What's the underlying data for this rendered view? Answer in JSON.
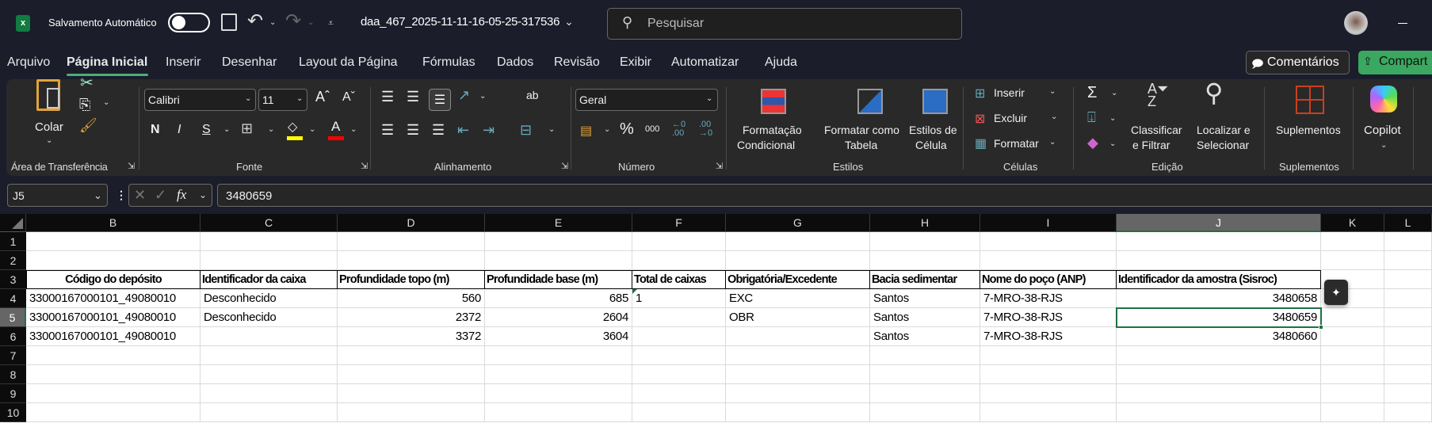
{
  "titlebar": {
    "autosave_label": "Salvamento Automático",
    "filename": "daa_467_2025-11-11-16-05-25-317536",
    "search_placeholder": "Pesquisar",
    "autosave_on": false
  },
  "tabs": [
    {
      "label": "Arquivo"
    },
    {
      "label": "Página Inicial",
      "active": true
    },
    {
      "label": "Inserir"
    },
    {
      "label": "Desenhar"
    },
    {
      "label": "Layout da Página"
    },
    {
      "label": "Fórmulas"
    },
    {
      "label": "Dados"
    },
    {
      "label": "Revisão"
    },
    {
      "label": "Exibir"
    },
    {
      "label": "Automatizar"
    },
    {
      "label": "Ajuda"
    }
  ],
  "actions": {
    "comments": "Comentários",
    "share": "Compart"
  },
  "ribbon": {
    "clipboard": {
      "paste": "Colar",
      "group": "Área de Transferência"
    },
    "font": {
      "name": "Calibri",
      "size": "11",
      "bold": "N",
      "italic": "I",
      "underline": "S",
      "group": "Fonte",
      "fill_color": "#ffff00",
      "font_color": "#ff0000"
    },
    "alignment": {
      "group": "Alinhamento",
      "wrap": "ab"
    },
    "number": {
      "format": "Geral",
      "percent": "%",
      "thousands": "000",
      "group": "Número"
    },
    "styles": {
      "conditional_1": "Formatação",
      "conditional_2": "Condicional",
      "table_1": "Formatar como",
      "table_2": "Tabela",
      "cell_1": "Estilos de",
      "cell_2": "Célula",
      "group": "Estilos"
    },
    "cells": {
      "insert": "Inserir",
      "delete": "Excluir",
      "format": "Formatar",
      "group": "Células"
    },
    "editing": {
      "sort_1": "Classificar",
      "sort_2": "e Filtrar",
      "find_1": "Localizar e",
      "find_2": "Selecionar",
      "group": "Edição"
    },
    "addins": {
      "label": "Suplementos",
      "group": "Suplementos"
    },
    "copilot": {
      "label": "Copilot"
    }
  },
  "formula_bar": {
    "name_box": "J5",
    "formula": "3480659"
  },
  "sheet": {
    "columns": [
      "B",
      "C",
      "D",
      "E",
      "F",
      "G",
      "H",
      "I",
      "J",
      "K",
      "L"
    ],
    "selected_column": "J",
    "selected_cell": "J5",
    "row_numbers": [
      "1",
      "2",
      "3",
      "4",
      "5",
      "6",
      "7",
      "8",
      "9",
      "10"
    ],
    "header_row": [
      "Código do depósito",
      "Identificador da caixa",
      "Profundidade topo (m)",
      "Profundidade base (m)",
      "Total de caixas",
      "Obrigatória/Excedente",
      "Bacia sedimentar",
      "Nome do poço (ANP)",
      "Identificador da amostra (Sisroc)"
    ],
    "rows": [
      [
        "33000167000101_49080010",
        "Desconhecido",
        "560",
        "685",
        "1",
        "EXC",
        "Santos",
        "7-MRO-38-RJS",
        "3480658"
      ],
      [
        "33000167000101_49080010",
        "Desconhecido",
        "2372",
        "2604",
        "",
        "OBR",
        "Santos",
        "7-MRO-38-RJS",
        "3480659"
      ],
      [
        "33000167000101_49080010",
        "",
        "3372",
        "3604",
        "",
        "",
        "Santos",
        "7-MRO-38-RJS",
        "3480660"
      ]
    ]
  }
}
